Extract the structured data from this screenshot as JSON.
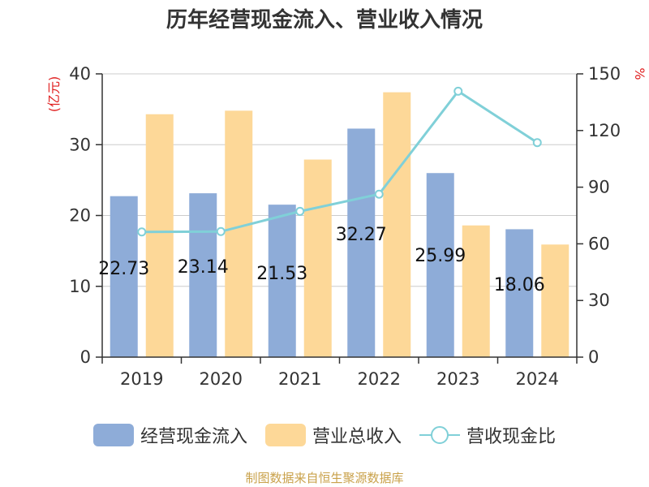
{
  "title": "历年经营现金流入、营业收入情况",
  "source": "制图数据来自恒生聚源数据库",
  "chart_data": {
    "type": "bar",
    "categories": [
      "2019",
      "2020",
      "2021",
      "2022",
      "2023",
      "2024"
    ],
    "series": [
      {
        "name": "经营现金流入",
        "type": "bar",
        "axis": "left",
        "color": "#8eacd8",
        "values": [
          22.73,
          23.14,
          21.53,
          32.27,
          25.99,
          18.06
        ],
        "labels": [
          "22.73",
          "23.14",
          "21.53",
          "32.27",
          "25.99",
          "18.06"
        ]
      },
      {
        "name": "营业总收入",
        "type": "bar",
        "axis": "left",
        "color": "#fdd898",
        "values": [
          34.3,
          34.8,
          27.9,
          37.4,
          18.6,
          15.9
        ]
      },
      {
        "name": "营收现金比",
        "type": "line",
        "axis": "right",
        "color": "#80d0d8",
        "values": [
          66.3,
          66.5,
          77.2,
          86.3,
          140.8,
          113.6
        ]
      }
    ],
    "ylabel": "(亿元)",
    "ylabel_right": "%",
    "ylim": [
      0,
      40
    ],
    "yticks": [
      0,
      10,
      20,
      30,
      40
    ],
    "ylim_right": [
      0,
      150
    ],
    "yticks_right": [
      0,
      30,
      60,
      90,
      120,
      150
    ],
    "grid": true,
    "legend_position": "bottom",
    "label_color": "#e02020"
  }
}
